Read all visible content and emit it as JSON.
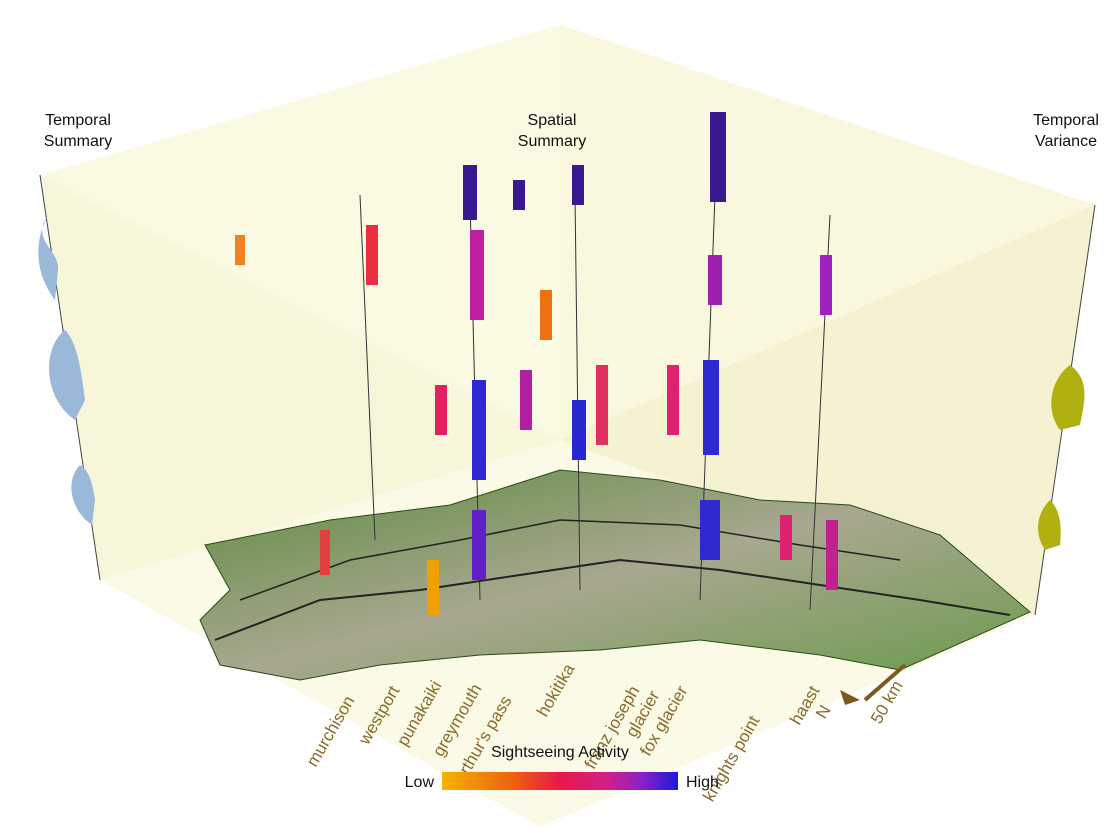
{
  "headers": {
    "temporal_summary": [
      "Temporal",
      "Summary"
    ],
    "spatial_summary": [
      "Spatial",
      "Summary"
    ],
    "temporal_variance": [
      "Temporal",
      "Variance"
    ]
  },
  "places": [
    "murchison",
    "westport",
    "punakaiki",
    "greymouth",
    "arthur's pass",
    "hokitika",
    [
      "franz joseph",
      "glacier"
    ],
    "fox glacier",
    "knights point",
    "haast"
  ],
  "scale": {
    "distance": "50 km",
    "north": "N"
  },
  "legend": {
    "title": "Sightseeing Activity",
    "low": "Low",
    "high": "High"
  }
}
